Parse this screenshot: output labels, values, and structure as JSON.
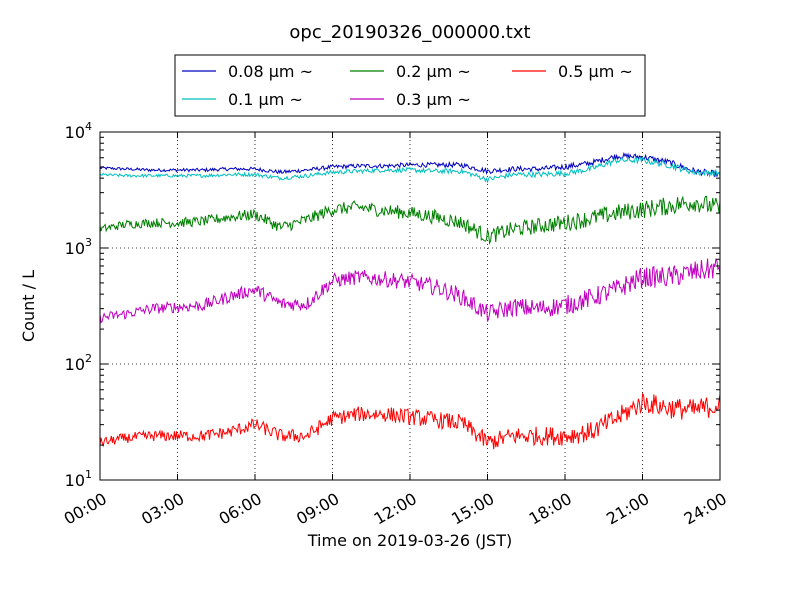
{
  "chart_data": {
    "type": "line",
    "title": "opc_20190326_000000.txt",
    "xlabel": "Time on 2019-03-26 (JST)",
    "ylabel": "Count / L",
    "yscale": "log",
    "xlim": [
      "00:00",
      "24:00"
    ],
    "ylim": [
      10,
      10000
    ],
    "grid": true,
    "legend_position": "top-center",
    "legend_columns": 3,
    "x_ticks": [
      "00:00",
      "03:00",
      "06:00",
      "09:00",
      "12:00",
      "15:00",
      "18:00",
      "21:00",
      "24:00"
    ],
    "y_ticks": [
      {
        "base": "10",
        "exp": "1",
        "value": 10
      },
      {
        "base": "10",
        "exp": "2",
        "value": 100
      },
      {
        "base": "10",
        "exp": "3",
        "value": 1000
      },
      {
        "base": "10",
        "exp": "4",
        "value": 10000
      }
    ],
    "x_hours": [
      0,
      1,
      2,
      3,
      4,
      5,
      6,
      7,
      8,
      9,
      10,
      11,
      12,
      13,
      14,
      15,
      16,
      17,
      18,
      19,
      20,
      21,
      22,
      23,
      24
    ],
    "series": [
      {
        "name": "0.08 μm ~",
        "color": "#0000bf",
        "noise": 0.02,
        "values": [
          4900,
          4800,
          4700,
          4700,
          4700,
          4800,
          4800,
          4500,
          4700,
          5000,
          5100,
          5100,
          5200,
          5200,
          5200,
          4600,
          4800,
          4800,
          5000,
          5400,
          6200,
          6100,
          5500,
          4600,
          4300
        ]
      },
      {
        "name": "0.1 μm ~",
        "color": "#00bfbf",
        "noise": 0.02,
        "values": [
          4300,
          4200,
          4200,
          4200,
          4200,
          4300,
          4300,
          4000,
          4200,
          4500,
          4600,
          4700,
          4700,
          4600,
          4600,
          3900,
          4300,
          4300,
          4400,
          4800,
          5700,
          5700,
          5200,
          4500,
          4400
        ]
      },
      {
        "name": "0.2 μm ~",
        "color": "#008000",
        "noise": 0.06,
        "values": [
          1450,
          1600,
          1650,
          1650,
          1700,
          1850,
          1950,
          1500,
          1750,
          2150,
          2250,
          2100,
          2000,
          1850,
          1650,
          1250,
          1450,
          1550,
          1650,
          1800,
          2000,
          2150,
          2300,
          2500,
          2200
        ]
      },
      {
        "name": "0.3 μm ~",
        "color": "#bf00bf",
        "noise": 0.07,
        "values": [
          250,
          270,
          300,
          310,
          320,
          380,
          440,
          330,
          330,
          520,
          560,
          540,
          510,
          460,
          380,
          270,
          310,
          300,
          320,
          370,
          440,
          560,
          560,
          620,
          680
        ]
      },
      {
        "name": "0.5 μm ~",
        "color": "#ff0000",
        "noise": 0.07,
        "values": [
          21,
          23,
          24,
          24,
          24,
          26,
          30,
          24,
          24,
          34,
          37,
          37,
          35,
          33,
          31,
          21,
          24,
          24,
          24,
          26,
          34,
          47,
          42,
          40,
          45
        ]
      }
    ]
  }
}
